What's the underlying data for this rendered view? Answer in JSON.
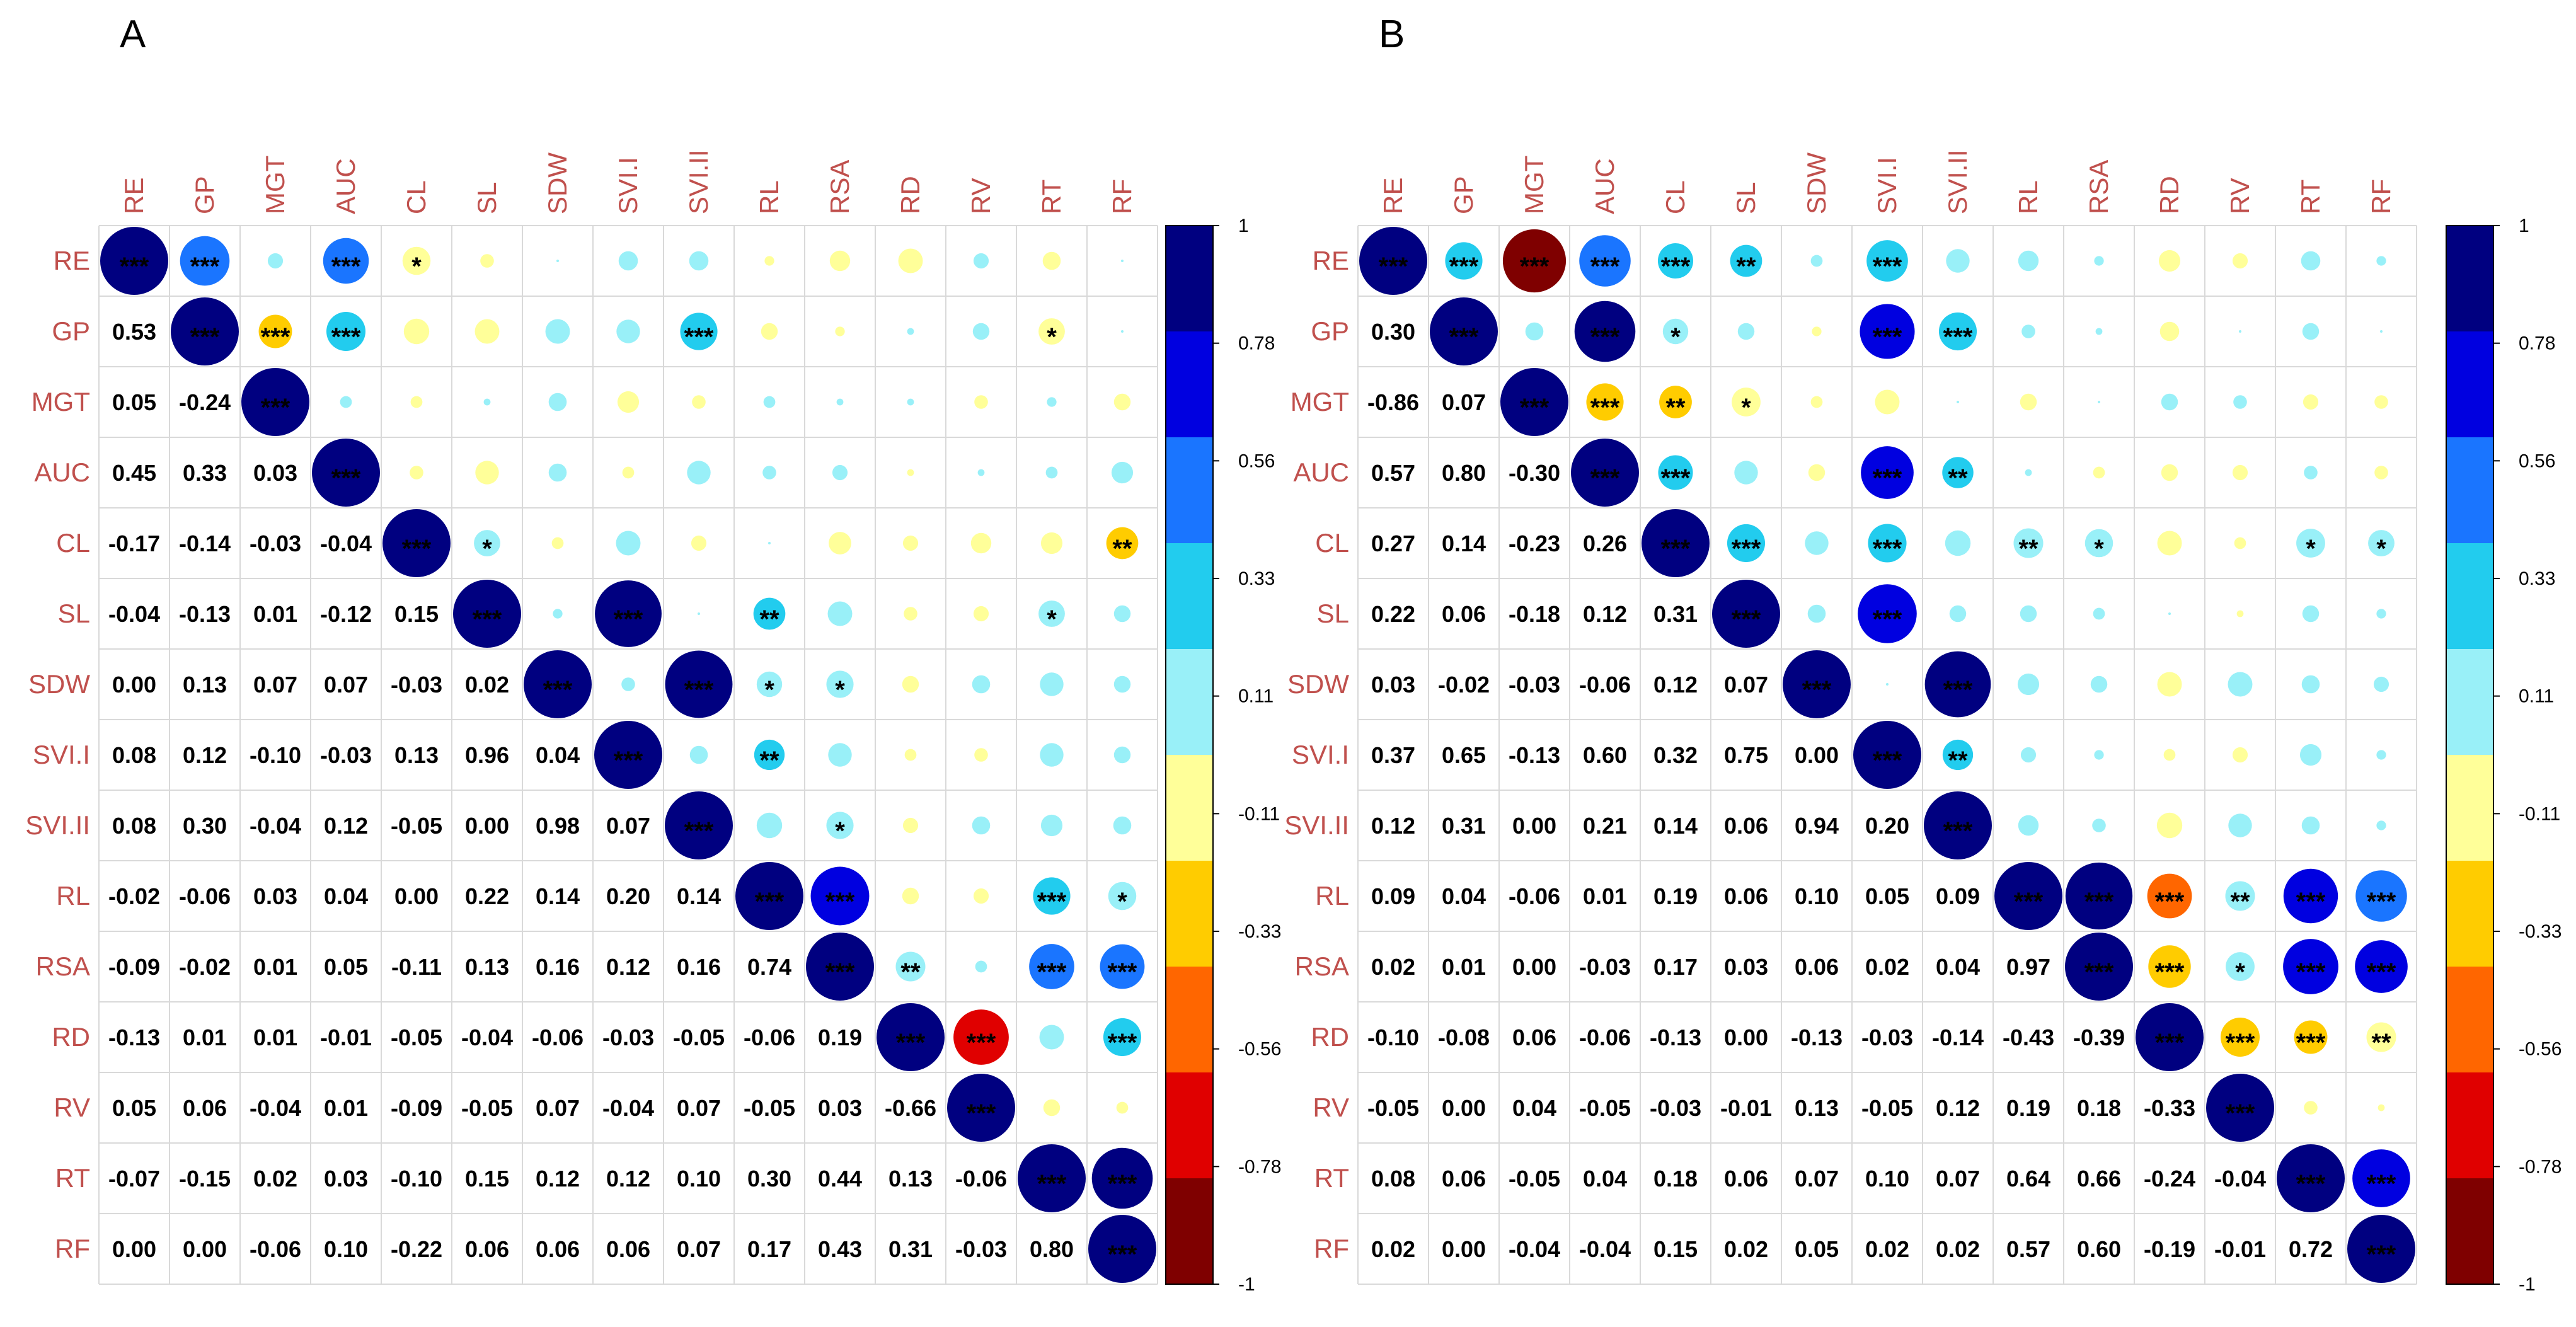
{
  "chart_data": [
    {
      "type": "heatmap",
      "style": "correlogram",
      "panel_label": "A",
      "variables": [
        "RE",
        "GP",
        "MGT",
        "AUC",
        "CL",
        "SL",
        "SDW",
        "SVI.I",
        "SVI.II",
        "RL",
        "RSA",
        "RD",
        "RV",
        "RT",
        "RF"
      ],
      "lower_coefficients": [
        [
          0.53
        ],
        [
          0.05,
          -0.24
        ],
        [
          0.45,
          0.33,
          0.03
        ],
        [
          -0.17,
          -0.14,
          -0.03,
          -0.04
        ],
        [
          -0.04,
          -0.13,
          0.01,
          -0.12,
          0.15
        ],
        [
          0.0,
          0.13,
          0.07,
          0.07,
          -0.03,
          0.02
        ],
        [
          0.08,
          0.12,
          -0.1,
          -0.03,
          0.13,
          0.96,
          0.04
        ],
        [
          0.08,
          0.3,
          -0.04,
          0.12,
          -0.05,
          0.0,
          0.98,
          0.07
        ],
        [
          -0.02,
          -0.06,
          0.03,
          0.04,
          0.0,
          0.22,
          0.14,
          0.2,
          0.14
        ],
        [
          -0.09,
          -0.02,
          0.01,
          0.05,
          -0.11,
          0.13,
          0.16,
          0.12,
          0.16,
          0.74
        ],
        [
          -0.13,
          0.01,
          0.01,
          -0.01,
          -0.05,
          -0.04,
          -0.06,
          -0.03,
          -0.05,
          -0.06,
          0.19
        ],
        [
          0.05,
          0.06,
          -0.04,
          0.01,
          -0.09,
          -0.05,
          0.07,
          -0.04,
          0.07,
          -0.05,
          0.03,
          -0.66
        ],
        [
          -0.07,
          -0.15,
          0.02,
          0.03,
          -0.1,
          0.15,
          0.12,
          0.12,
          0.1,
          0.3,
          0.44,
          0.13,
          -0.06
        ],
        [
          0.0,
          0.0,
          -0.06,
          0.1,
          -0.22,
          0.06,
          0.06,
          0.06,
          0.07,
          0.17,
          0.43,
          0.31,
          -0.03,
          0.8
        ]
      ],
      "upper_significance": [
        [
          "RE",
          "GP",
          "***"
        ],
        [
          "RE",
          "AUC",
          "***"
        ],
        [
          "RE",
          "CL",
          "*"
        ],
        [
          "GP",
          "MGT",
          "***"
        ],
        [
          "GP",
          "AUC",
          "***"
        ],
        [
          "GP",
          "SVI.II",
          "***"
        ],
        [
          "GP",
          "RT",
          "*"
        ],
        [
          "CL",
          "SL",
          "*"
        ],
        [
          "CL",
          "RF",
          "**"
        ],
        [
          "SL",
          "SVI.I",
          "***"
        ],
        [
          "SL",
          "RL",
          "**"
        ],
        [
          "SL",
          "RT",
          "*"
        ],
        [
          "SDW",
          "SVI.II",
          "***"
        ],
        [
          "SDW",
          "RL",
          "*"
        ],
        [
          "SDW",
          "RSA",
          "*"
        ],
        [
          "SVI.I",
          "RL",
          "**"
        ],
        [
          "SVI.II",
          "RSA",
          "*"
        ],
        [
          "RL",
          "RSA",
          "***"
        ],
        [
          "RL",
          "RT",
          "***"
        ],
        [
          "RL",
          "RF",
          "*"
        ],
        [
          "RSA",
          "RD",
          "**"
        ],
        [
          "RSA",
          "RT",
          "***"
        ],
        [
          "RSA",
          "RF",
          "***"
        ],
        [
          "RD",
          "RV",
          "***"
        ],
        [
          "RD",
          "RF",
          "***"
        ],
        [
          "RT",
          "RF",
          "***"
        ]
      ],
      "diagonal_value": 1,
      "diagonal_significance": "***",
      "colorbar_ticks": [
        "1",
        "0.78",
        "0.56",
        "0.33",
        "0.11",
        "-0.11",
        "-0.33",
        "-0.56",
        "-0.78",
        "-1"
      ],
      "value_range": [
        -1,
        1
      ]
    },
    {
      "type": "heatmap",
      "style": "correlogram",
      "panel_label": "B",
      "variables": [
        "RE",
        "GP",
        "MGT",
        "AUC",
        "CL",
        "SL",
        "SDW",
        "SVI.I",
        "SVI.II",
        "RL",
        "RSA",
        "RD",
        "RV",
        "RT",
        "RF"
      ],
      "lower_coefficients": [
        [
          0.3
        ],
        [
          -0.86,
          0.07
        ],
        [
          0.57,
          0.8,
          -0.3
        ],
        [
          0.27,
          0.14,
          -0.23,
          0.26
        ],
        [
          0.22,
          0.06,
          -0.18,
          0.12,
          0.31
        ],
        [
          0.03,
          -0.02,
          -0.03,
          -0.06,
          0.12,
          0.07
        ],
        [
          0.37,
          0.65,
          -0.13,
          0.6,
          0.32,
          0.75,
          0.0
        ],
        [
          0.12,
          0.31,
          0.0,
          0.21,
          0.14,
          0.06,
          0.94,
          0.2
        ],
        [
          0.09,
          0.04,
          -0.06,
          0.01,
          0.19,
          0.06,
          0.1,
          0.05,
          0.09
        ],
        [
          0.02,
          0.01,
          0.0,
          -0.03,
          0.17,
          0.03,
          0.06,
          0.02,
          0.04,
          0.97
        ],
        [
          -0.1,
          -0.08,
          0.06,
          -0.06,
          -0.13,
          0.0,
          -0.13,
          -0.03,
          -0.14,
          -0.43,
          -0.39
        ],
        [
          -0.05,
          0.0,
          0.04,
          -0.05,
          -0.03,
          -0.01,
          0.13,
          -0.05,
          0.12,
          0.19,
          0.18,
          -0.33
        ],
        [
          0.08,
          0.06,
          -0.05,
          0.04,
          0.18,
          0.06,
          0.07,
          0.1,
          0.07,
          0.64,
          0.66,
          -0.24,
          -0.04
        ],
        [
          0.02,
          0.0,
          -0.04,
          -0.04,
          0.15,
          0.02,
          0.05,
          0.02,
          0.02,
          0.57,
          0.6,
          -0.19,
          -0.01,
          0.72
        ]
      ],
      "upper_significance": [
        [
          "RE",
          "GP",
          "***"
        ],
        [
          "RE",
          "MGT",
          "***"
        ],
        [
          "RE",
          "AUC",
          "***"
        ],
        [
          "RE",
          "CL",
          "***"
        ],
        [
          "RE",
          "SL",
          "**"
        ],
        [
          "RE",
          "SVI.I",
          "***"
        ],
        [
          "GP",
          "AUC",
          "***"
        ],
        [
          "GP",
          "CL",
          "*"
        ],
        [
          "GP",
          "SVI.I",
          "***"
        ],
        [
          "GP",
          "SVI.II",
          "***"
        ],
        [
          "MGT",
          "AUC",
          "***"
        ],
        [
          "MGT",
          "CL",
          "**"
        ],
        [
          "MGT",
          "SL",
          "*"
        ],
        [
          "AUC",
          "CL",
          "***"
        ],
        [
          "AUC",
          "SVI.I",
          "***"
        ],
        [
          "AUC",
          "SVI.II",
          "**"
        ],
        [
          "CL",
          "SL",
          "***"
        ],
        [
          "CL",
          "SVI.I",
          "***"
        ],
        [
          "CL",
          "RL",
          "**"
        ],
        [
          "CL",
          "RSA",
          "*"
        ],
        [
          "CL",
          "RT",
          "*"
        ],
        [
          "CL",
          "RF",
          "*"
        ],
        [
          "SL",
          "SVI.I",
          "***"
        ],
        [
          "SDW",
          "SVI.II",
          "***"
        ],
        [
          "SVI.I",
          "SVI.II",
          "**"
        ],
        [
          "RL",
          "RSA",
          "***"
        ],
        [
          "RL",
          "RD",
          "***"
        ],
        [
          "RL",
          "RV",
          "**"
        ],
        [
          "RL",
          "RT",
          "***"
        ],
        [
          "RL",
          "RF",
          "***"
        ],
        [
          "RSA",
          "RD",
          "***"
        ],
        [
          "RSA",
          "RV",
          "*"
        ],
        [
          "RSA",
          "RT",
          "***"
        ],
        [
          "RSA",
          "RF",
          "***"
        ],
        [
          "RD",
          "RV",
          "***"
        ],
        [
          "RD",
          "RT",
          "***"
        ],
        [
          "RD",
          "RF",
          "**"
        ],
        [
          "RT",
          "RF",
          "***"
        ]
      ],
      "diagonal_value": 1,
      "diagonal_significance": "***",
      "colorbar_ticks": [
        "1",
        "0.78",
        "0.56",
        "0.33",
        "0.11",
        "-0.11",
        "-0.33",
        "-0.56",
        "-0.78",
        "-1"
      ],
      "value_range": [
        -1,
        1
      ]
    }
  ],
  "colors": {
    "label": "#c0504d",
    "grid": "#d9d9d9",
    "palette": [
      "#7f0000",
      "#e00000",
      "#ff6600",
      "#ffcc00",
      "#ffff99",
      "#99f0f8",
      "#22ccee",
      "#1a75ff",
      "#0000e0",
      "#000080"
    ]
  }
}
